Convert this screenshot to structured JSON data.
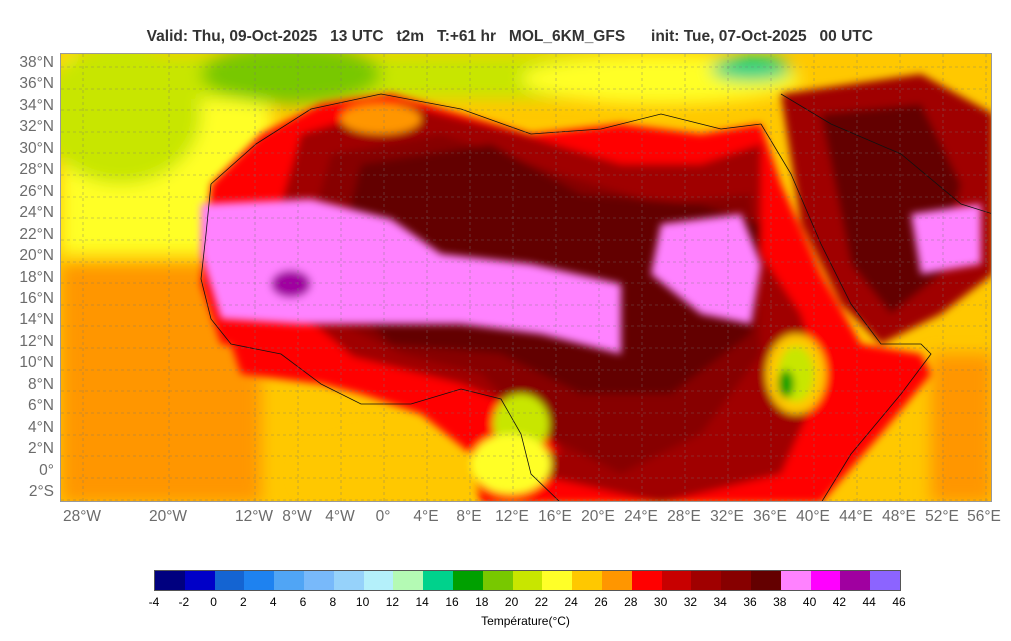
{
  "header": {
    "valid": "Valid: Thu, 09-Oct-2025   13 UTC",
    "param": "t2m",
    "forecast_hour": "T:+61 hr",
    "model": "MOL_6KM_GFS",
    "init": "init: Tue, 07-Oct-2025   00 UTC"
  },
  "map": {
    "lat_labels": [
      "38°N",
      "36°N",
      "34°N",
      "32°N",
      "30°N",
      "28°N",
      "26°N",
      "24°N",
      "22°N",
      "20°N",
      "18°N",
      "16°N",
      "14°N",
      "12°N",
      "10°N",
      "8°N",
      "6°N",
      "4°N",
      "2°N",
      "0°",
      "2°S"
    ],
    "lon_labels": [
      "28°W",
      "20°W",
      "12°W",
      "8°W",
      "4°W",
      "0°",
      "4°E",
      "8°E",
      "12°E",
      "16°E",
      "20°E",
      "24°E",
      "28°E",
      "32°E",
      "36°E",
      "40°E",
      "44°E",
      "48°E",
      "52°E",
      "56°E"
    ],
    "lat_range": [
      -3.0,
      38.0
    ],
    "lon_range": [
      -29.0,
      57.0
    ]
  },
  "colorbar": {
    "title": "Température(°C)",
    "tick_labels": [
      "-4",
      "-2",
      "0",
      "2",
      "4",
      "6",
      "8",
      "10",
      "12",
      "14",
      "16",
      "18",
      "20",
      "22",
      "24",
      "26",
      "28",
      "30",
      "32",
      "34",
      "36",
      "38",
      "40",
      "42",
      "44",
      "46"
    ],
    "colors": [
      "#00007f",
      "#0000c8",
      "#1464d2",
      "#1e82f0",
      "#50a5f5",
      "#78b9fa",
      "#96d2fa",
      "#b4f0fa",
      "#b4fab4",
      "#00d28c",
      "#00a000",
      "#78c800",
      "#c8e600",
      "#ffff28",
      "#ffc800",
      "#ff9600",
      "#ff0000",
      "#c80000",
      "#a00000",
      "#870000",
      "#640000",
      "#ff82ff",
      "#ff00ff",
      "#a000a0",
      "#8c64ff"
    ]
  }
}
